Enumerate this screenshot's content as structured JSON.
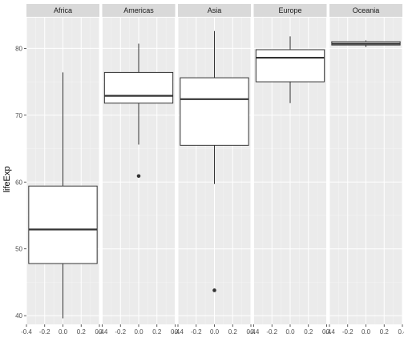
{
  "chart_data": {
    "type": "boxplot",
    "ylabel": "lifeExp",
    "xlabel": "",
    "ylim": [
      38.7,
      84.6
    ],
    "xlim": [
      -0.4,
      0.4
    ],
    "y_ticks": [
      40,
      50,
      60,
      70,
      80
    ],
    "x_ticks": [
      "-0.4",
      "-0.2",
      "0.0",
      "0.2",
      "0.4"
    ],
    "x_tick_values": [
      -0.4,
      -0.2,
      0.0,
      0.2,
      0.4
    ],
    "grid": true,
    "panels": [
      {
        "name": "Africa",
        "whisker_low": 39.6,
        "q1": 47.8,
        "median": 52.9,
        "q3": 59.4,
        "whisker_high": 76.4,
        "outliers": []
      },
      {
        "name": "Americas",
        "whisker_low": 65.6,
        "q1": 71.8,
        "median": 72.9,
        "q3": 76.4,
        "whisker_high": 80.7,
        "outliers": [
          60.9
        ]
      },
      {
        "name": "Asia",
        "whisker_low": 59.7,
        "q1": 65.5,
        "median": 72.4,
        "q3": 75.6,
        "whisker_high": 82.6,
        "outliers": [
          43.8
        ]
      },
      {
        "name": "Europe",
        "whisker_low": 71.8,
        "q1": 75.0,
        "median": 78.6,
        "q3": 79.8,
        "whisker_high": 81.8,
        "outliers": []
      },
      {
        "name": "Oceania",
        "whisker_low": 80.2,
        "q1": 80.5,
        "median": 80.7,
        "q3": 81.0,
        "whisker_high": 81.2,
        "outliers": []
      }
    ],
    "colors": {
      "panel_bg": "#EBEBEB",
      "strip_bg": "#D9D9D9",
      "grid_major": "#FFFFFF",
      "grid_minor": "#F5F5F5",
      "box_fill": "#FFFFFF",
      "box_stroke": "#333333",
      "tick": "#333333"
    }
  }
}
